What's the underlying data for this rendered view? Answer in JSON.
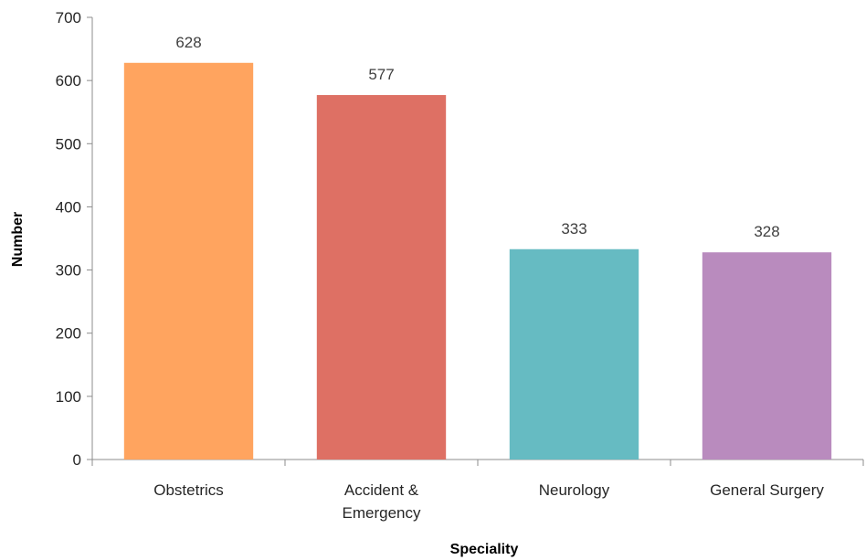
{
  "chart_data": {
    "type": "bar",
    "title": "",
    "xlabel": "Speciality",
    "ylabel": "Number",
    "categories": [
      [
        "Obstetrics"
      ],
      [
        "Accident &",
        "Emergency"
      ],
      [
        "Neurology"
      ],
      [
        "General Surgery"
      ]
    ],
    "values": [
      628,
      577,
      333,
      328
    ],
    "colors": [
      "#FFA45F",
      "#DE7064",
      "#66BBC2",
      "#B98BBE"
    ],
    "ylim": [
      0,
      700
    ],
    "yticks": [
      0,
      100,
      200,
      300,
      400,
      500,
      600,
      700
    ],
    "grid": false,
    "legend": "none",
    "data_labels": true
  }
}
